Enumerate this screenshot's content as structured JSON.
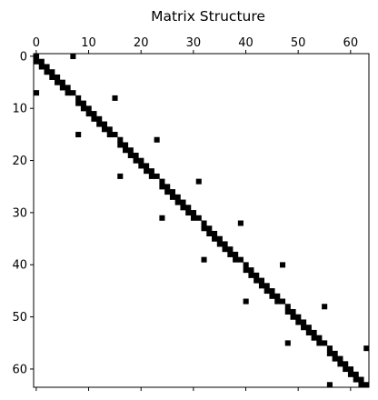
{
  "chart_data": {
    "type": "heatmap",
    "title": "Matrix Structure",
    "xlabel": "",
    "ylabel": "",
    "size": 64,
    "xlim": [
      -0.5,
      63.5
    ],
    "ylim": [
      63.5,
      -0.5
    ],
    "x_axis_position": "top",
    "grid": false,
    "x_ticks": [
      0,
      10,
      20,
      30,
      40,
      50,
      60
    ],
    "y_ticks": [
      0,
      10,
      20,
      30,
      40,
      50,
      60
    ],
    "cell_color": "#000000",
    "background_color": "#ffffff",
    "block_size": 8,
    "block_pattern": [
      [
        0,
        0
      ],
      [
        1,
        1
      ],
      [
        2,
        2
      ],
      [
        3,
        3
      ],
      [
        4,
        4
      ],
      [
        5,
        5
      ],
      [
        6,
        6
      ],
      [
        7,
        7
      ],
      [
        1,
        0
      ],
      [
        2,
        1
      ],
      [
        3,
        2
      ],
      [
        4,
        3
      ],
      [
        5,
        4
      ],
      [
        6,
        5
      ],
      [
        7,
        6
      ],
      [
        0,
        7
      ],
      [
        7,
        0
      ]
    ],
    "extra_nonzeros": [
      [
        56,
        63
      ],
      [
        63,
        56
      ]
    ]
  }
}
